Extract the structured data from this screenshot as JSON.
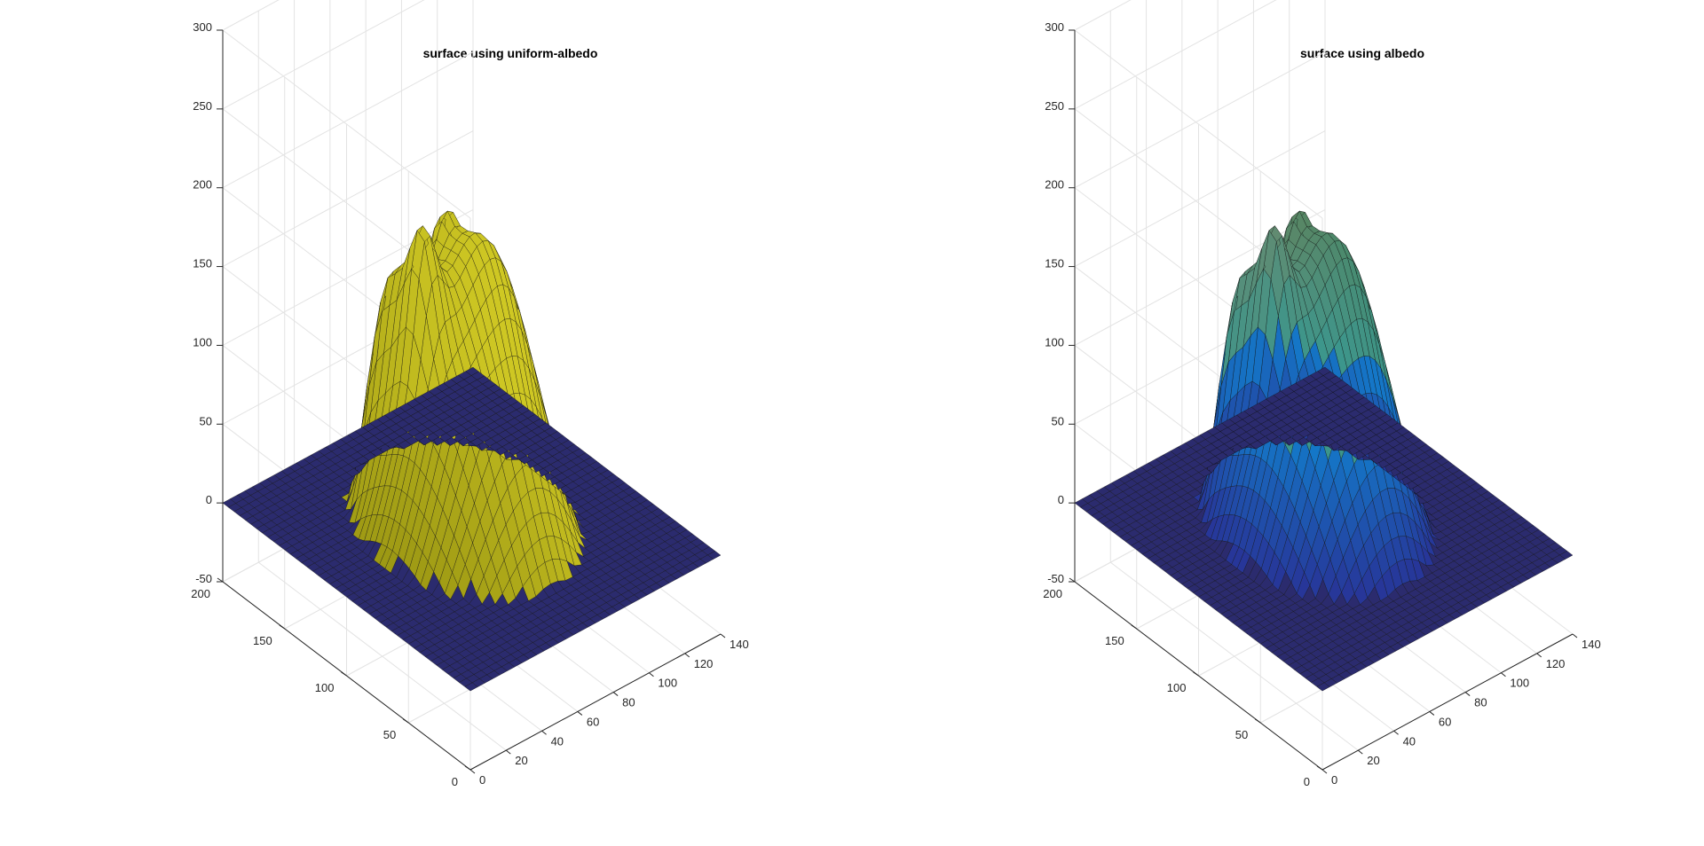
{
  "chart_data": [
    {
      "type": "surface",
      "title": "surface using uniform-albedo",
      "xlabel": "",
      "ylabel": "",
      "zlabel": "",
      "x_ticks": [
        "0",
        "20",
        "40",
        "60",
        "80",
        "100",
        "120",
        "140"
      ],
      "y_ticks": [
        "0",
        "50",
        "100",
        "150",
        "200"
      ],
      "z_ticks": [
        "-50",
        "0",
        "50",
        "100",
        "150",
        "200",
        "250",
        "300"
      ],
      "xlim": [
        0,
        140
      ],
      "ylim": [
        0,
        200
      ],
      "zlim": [
        -50,
        300
      ],
      "grid": true,
      "colormap": "uniform",
      "surface_color": "#c8c316",
      "base_color": "#2b2b6e",
      "features": {
        "base_plane_z": 0,
        "peak_height": 255,
        "peak_location": "upper-middle",
        "shape": "face-like dome reconstructed from photometric stereo"
      }
    },
    {
      "type": "surface",
      "title": "surface using albedo",
      "xlabel": "",
      "ylabel": "",
      "zlabel": "",
      "x_ticks": [
        "0",
        "20",
        "40",
        "60",
        "80",
        "100",
        "120",
        "140"
      ],
      "y_ticks": [
        "0",
        "50",
        "100",
        "150",
        "200"
      ],
      "z_ticks": [
        "-50",
        "0",
        "50",
        "100",
        "150",
        "200",
        "250",
        "300"
      ],
      "xlim": [
        0,
        140
      ],
      "ylim": [
        0,
        200
      ],
      "zlim": [
        -50,
        300
      ],
      "grid": true,
      "colormap": "parula-like albedo shading",
      "surface_color": "#4a9a8a",
      "base_color": "#2b2b6e",
      "features": {
        "base_plane_z": 0,
        "peak_height": 255,
        "peak_location": "upper-middle",
        "shape": "face-like dome reconstructed from photometric stereo"
      }
    }
  ]
}
